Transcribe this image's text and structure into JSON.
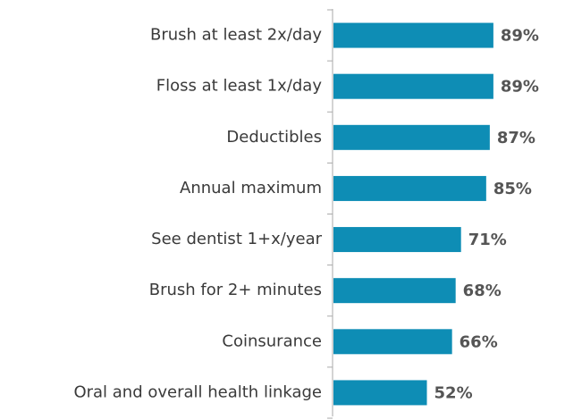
{
  "chart_data": {
    "type": "barh",
    "categories": [
      "Brush at least 2x/day",
      "Floss at least 1x/day",
      "Deductibles",
      "Annual maximum",
      "See dentist 1+x/year",
      "Brush for 2+ minutes",
      "Coinsurance",
      "Oral and overall health linkage"
    ],
    "values": [
      89,
      89,
      87,
      85,
      71,
      68,
      66,
      52
    ],
    "value_labels": [
      "89%",
      "89%",
      "87%",
      "85%",
      "71%",
      "68%",
      "66%",
      "52%"
    ],
    "color": "#0e8db5",
    "xlim": [
      0,
      100
    ]
  }
}
